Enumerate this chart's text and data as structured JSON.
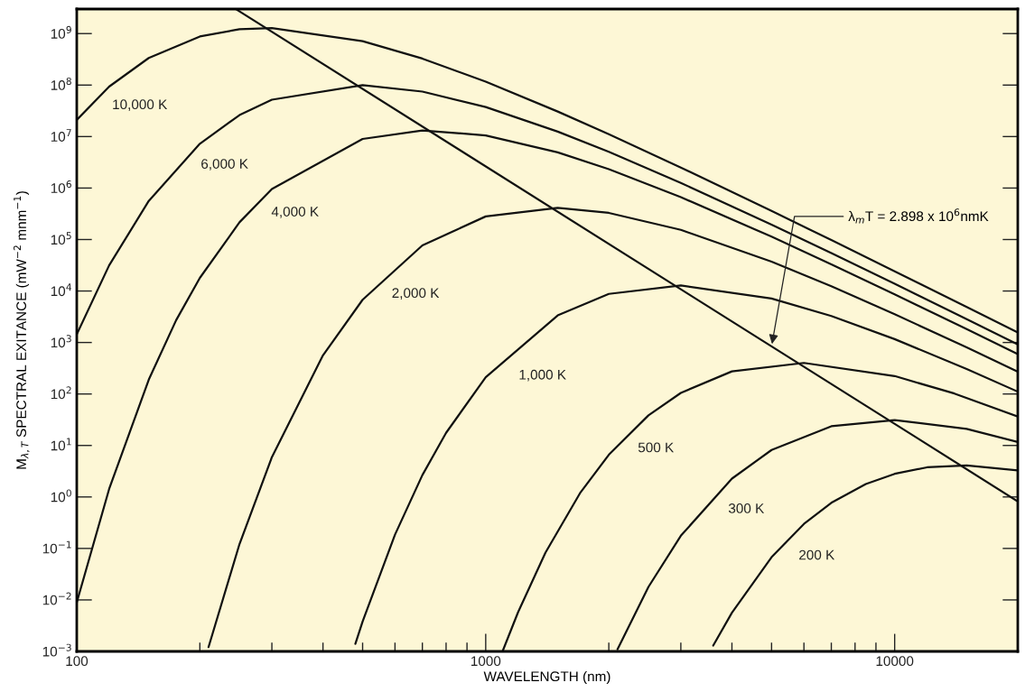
{
  "chart_data": {
    "type": "line",
    "xlabel": "WAVELENGTH (nm)",
    "ylabel": "M$_{λ,T}$ SPECTRAL EXITANCE (mW$^{−2}$ mnm$^{−1}$)",
    "log": "xy",
    "grid": false,
    "legend": false,
    "marker": "none",
    "line_style": "solid",
    "xlim": [
      100,
      20000
    ],
    "xticks": [
      100,
      1000,
      10000
    ],
    "ylim": [
      0.001,
      3000000000
    ],
    "yticks": [
      {
        "value": 0.001,
        "label": "10$^{−3}$"
      },
      {
        "value": 0.01,
        "label": "10$^{−2}$"
      },
      {
        "value": 0.1,
        "label": "10$^{−1}$"
      },
      {
        "value": 1,
        "label": "10$^{0}$"
      },
      {
        "value": 10,
        "label": "10$^{1}$"
      },
      {
        "value": 100,
        "label": "10$^{2}$"
      },
      {
        "value": 1000,
        "label": "10$^{3}$"
      },
      {
        "value": 10000,
        "label": "10$^{4}$"
      },
      {
        "value": 100000,
        "label": "10$^{5}$"
      },
      {
        "value": 1000000,
        "label": "10$^{6}$"
      },
      {
        "value": 10000000,
        "label": "10$^{7}$"
      },
      {
        "value": 100000000,
        "label": "10$^{8}$"
      },
      {
        "value": 1000000000,
        "label": "10$^{9}$"
      }
    ],
    "series": [
      {
        "name": "10,000 K",
        "color": "#111111",
        "x": [
          100,
          120,
          150,
          200,
          250,
          300,
          500,
          700,
          1000,
          1500,
          2000,
          3000,
          5000,
          7000,
          10000,
          15000,
          20000
        ],
        "values": [
          21100000,
          93400000,
          336000000,
          878000000,
          1217000000,
          1283000000,
          713000000,
          327000000,
          116400000,
          30600000,
          11100000,
          2500000,
          359000,
          97500,
          24200,
          4890,
          1570
        ]
      },
      {
        "name": "6,000 K",
        "color": "#111111",
        "x": [
          100,
          120,
          150,
          200,
          250,
          300,
          500,
          700,
          1000,
          1500,
          2000,
          3000,
          5000,
          7000,
          10000,
          15000,
          20000
        ],
        "values": [
          1440,
          31500,
          562000,
          7260000,
          26150000,
          52000000,
          99800000,
          74800000,
          37400000,
          12480000,
          5050000,
          1258000,
          194500,
          54500,
          13810,
          2840,
          918
        ]
      },
      {
        "name": "4,000 K",
        "color": "#111111",
        "x": [
          100,
          120,
          150,
          175,
          200,
          250,
          300,
          500,
          700,
          1000,
          1500,
          2000,
          3000,
          5000,
          7000,
          10000,
          15000,
          20000
        ],
        "values": [
          0.00895,
          1.43,
          189.5,
          2710,
          18000,
          216000,
          957000,
          8990000,
          13130000,
          10540000,
          4930000,
          2320000,
          665000,
          113700,
          33100,
          8640,
          1818,
          593
        ]
      },
      {
        "name": "2,000 K",
        "color": "#111111",
        "x": [
          210,
          250,
          300,
          400,
          500,
          700,
          1000,
          1500,
          2000,
          3000,
          5000,
          7000,
          10000,
          15000,
          20000
        ],
        "values": [
          0.00121,
          0.1216,
          5.92,
          564,
          6760,
          76800,
          281000,
          411000,
          329000,
          154000,
          37200,
          12400,
          3550,
          801,
          270
        ]
      },
      {
        "name": "1,000 K",
        "color": "#111111",
        "x": [
          480,
          500,
          600,
          700,
          800,
          1000,
          1500,
          2000,
          3000,
          5000,
          7000,
          10000,
          15000,
          20000
        ],
        "values": [
          0.0014,
          0.0038,
          0.185,
          2.65,
          17.6,
          211,
          3360,
          8790,
          12830,
          7130,
          3270,
          1164,
          306,
          111
        ]
      },
      {
        "name": "500 K",
        "color": "#111111",
        "x": [
          1100,
          1200,
          1400,
          1700,
          2000,
          2500,
          3000,
          4000,
          6000,
          10000,
          14000,
          20000
        ],
        "values": [
          0.00101,
          0.00578,
          0.0828,
          1.18,
          6.59,
          38.4,
          105,
          275,
          401,
          223,
          102,
          36.4
        ]
      },
      {
        "name": "300 K",
        "color": "#111111",
        "x": [
          2100,
          2500,
          3000,
          4000,
          5000,
          7000,
          10000,
          15000,
          20000
        ],
        "values": [
          0.0011,
          0.0179,
          0.176,
          2.27,
          8.17,
          23.6,
          31.2,
          21.0,
          11.7
        ]
      },
      {
        "name": "200 K",
        "color": "#111111",
        "x": [
          3600,
          4000,
          5000,
          6000,
          7000,
          8500,
          10000,
          12000,
          15000,
          20000
        ],
        "values": [
          0.0013,
          0.00564,
          0.0676,
          0.299,
          0.768,
          1.78,
          2.81,
          3.76,
          4.11,
          3.29
        ]
      },
      {
        "type": "line",
        "color": "#111111",
        "x": [
          245,
          20000
        ],
        "values": [
          2980000000,
          0.82
        ]
      }
    ],
    "annotations": [
      {
        "text": "λ$_{m}$T = 2.898 x 10$^{6}$nmK",
        "x": 5000,
        "y": 840
      }
    ]
  }
}
